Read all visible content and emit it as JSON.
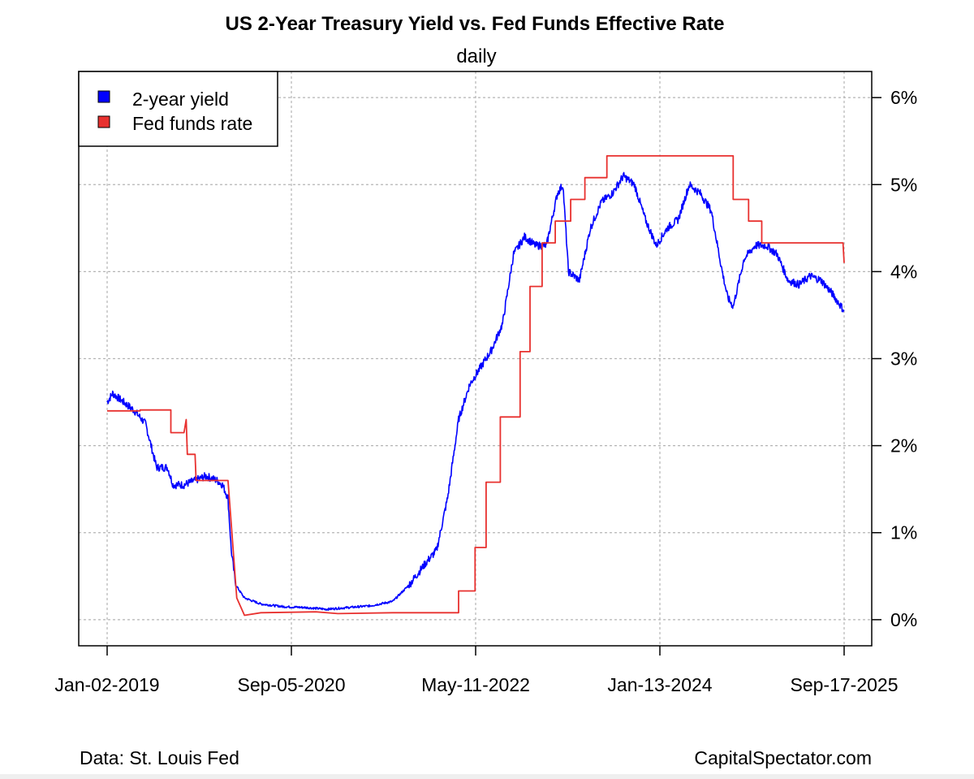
{
  "chart_data": {
    "type": "line",
    "title": "US 2-Year Treasury Yield vs. Fed Funds Effective Rate",
    "subtitle": "daily",
    "xlabel": "",
    "ylabel": "",
    "x_ticks": [
      "Jan-02-2019",
      "Sep-05-2020",
      "May-11-2022",
      "Jan-13-2024",
      "Sep-17-2025"
    ],
    "y_ticks": [
      "0%",
      "1%",
      "2%",
      "3%",
      "4%",
      "5%",
      "6%"
    ],
    "ylim": [
      -0.3,
      6.3
    ],
    "x_range_years": [
      2019.0,
      2025.71
    ],
    "grid": true,
    "legend_position": "top-left",
    "series": [
      {
        "name": "2-year yield",
        "color": "#0000ff",
        "points": [
          [
            2019.0,
            2.5
          ],
          [
            2019.05,
            2.6
          ],
          [
            2019.15,
            2.5
          ],
          [
            2019.25,
            2.4
          ],
          [
            2019.35,
            2.25
          ],
          [
            2019.4,
            2.0
          ],
          [
            2019.45,
            1.75
          ],
          [
            2019.55,
            1.75
          ],
          [
            2019.6,
            1.55
          ],
          [
            2019.7,
            1.55
          ],
          [
            2019.8,
            1.6
          ],
          [
            2019.9,
            1.65
          ],
          [
            2020.0,
            1.6
          ],
          [
            2020.05,
            1.55
          ],
          [
            2020.1,
            1.4
          ],
          [
            2020.13,
            0.8
          ],
          [
            2020.17,
            0.4
          ],
          [
            2020.25,
            0.25
          ],
          [
            2020.4,
            0.18
          ],
          [
            2020.6,
            0.15
          ],
          [
            2020.8,
            0.14
          ],
          [
            2021.0,
            0.12
          ],
          [
            2021.2,
            0.14
          ],
          [
            2021.4,
            0.16
          ],
          [
            2021.6,
            0.21
          ],
          [
            2021.75,
            0.4
          ],
          [
            2021.9,
            0.65
          ],
          [
            2022.0,
            0.8
          ],
          [
            2022.1,
            1.4
          ],
          [
            2022.2,
            2.3
          ],
          [
            2022.3,
            2.7
          ],
          [
            2022.4,
            2.9
          ],
          [
            2022.5,
            3.1
          ],
          [
            2022.6,
            3.4
          ],
          [
            2022.7,
            4.2
          ],
          [
            2022.8,
            4.4
          ],
          [
            2022.9,
            4.3
          ],
          [
            2023.0,
            4.3
          ],
          [
            2023.1,
            4.9
          ],
          [
            2023.15,
            5.0
          ],
          [
            2023.2,
            4.0
          ],
          [
            2023.3,
            3.9
          ],
          [
            2023.4,
            4.5
          ],
          [
            2023.5,
            4.8
          ],
          [
            2023.6,
            4.9
          ],
          [
            2023.7,
            5.1
          ],
          [
            2023.8,
            5.0
          ],
          [
            2023.9,
            4.6
          ],
          [
            2024.0,
            4.3
          ],
          [
            2024.1,
            4.5
          ],
          [
            2024.2,
            4.6
          ],
          [
            2024.3,
            5.0
          ],
          [
            2024.4,
            4.9
          ],
          [
            2024.5,
            4.7
          ],
          [
            2024.6,
            4.0
          ],
          [
            2024.65,
            3.7
          ],
          [
            2024.7,
            3.6
          ],
          [
            2024.8,
            4.15
          ],
          [
            2024.9,
            4.3
          ],
          [
            2025.0,
            4.3
          ],
          [
            2025.1,
            4.2
          ],
          [
            2025.2,
            3.9
          ],
          [
            2025.3,
            3.85
          ],
          [
            2025.4,
            3.95
          ],
          [
            2025.5,
            3.9
          ],
          [
            2025.6,
            3.75
          ],
          [
            2025.71,
            3.55
          ]
        ]
      },
      {
        "name": "Fed funds rate",
        "color": "#e8312f",
        "points": [
          [
            2019.0,
            2.4
          ],
          [
            2019.3,
            2.4
          ],
          [
            2019.3,
            2.41
          ],
          [
            2019.58,
            2.41
          ],
          [
            2019.58,
            2.15
          ],
          [
            2019.7,
            2.15
          ],
          [
            2019.72,
            2.3
          ],
          [
            2019.73,
            1.9
          ],
          [
            2019.8,
            1.9
          ],
          [
            2019.81,
            1.6
          ],
          [
            2020.1,
            1.6
          ],
          [
            2020.18,
            0.25
          ],
          [
            2020.25,
            0.05
          ],
          [
            2020.4,
            0.08
          ],
          [
            2020.9,
            0.09
          ],
          [
            2021.1,
            0.07
          ],
          [
            2021.6,
            0.08
          ],
          [
            2021.8,
            0.08
          ],
          [
            2022.2,
            0.08
          ],
          [
            2022.2,
            0.33
          ],
          [
            2022.35,
            0.33
          ],
          [
            2022.35,
            0.83
          ],
          [
            2022.45,
            0.83
          ],
          [
            2022.45,
            1.58
          ],
          [
            2022.58,
            1.58
          ],
          [
            2022.58,
            2.33
          ],
          [
            2022.76,
            2.33
          ],
          [
            2022.76,
            3.08
          ],
          [
            2022.85,
            3.08
          ],
          [
            2022.85,
            3.83
          ],
          [
            2022.96,
            3.83
          ],
          [
            2022.96,
            4.33
          ],
          [
            2023.08,
            4.33
          ],
          [
            2023.08,
            4.58
          ],
          [
            2023.22,
            4.58
          ],
          [
            2023.22,
            4.83
          ],
          [
            2023.35,
            4.83
          ],
          [
            2023.35,
            5.08
          ],
          [
            2023.55,
            5.08
          ],
          [
            2023.55,
            5.33
          ],
          [
            2024.7,
            5.33
          ],
          [
            2024.7,
            4.83
          ],
          [
            2024.84,
            4.83
          ],
          [
            2024.84,
            4.58
          ],
          [
            2024.96,
            4.58
          ],
          [
            2024.96,
            4.33
          ],
          [
            2025.7,
            4.33
          ],
          [
            2025.71,
            4.1
          ]
        ]
      }
    ]
  },
  "credits": {
    "source": "Data: St. Louis Fed",
    "site": "CapitalSpectator.com"
  }
}
